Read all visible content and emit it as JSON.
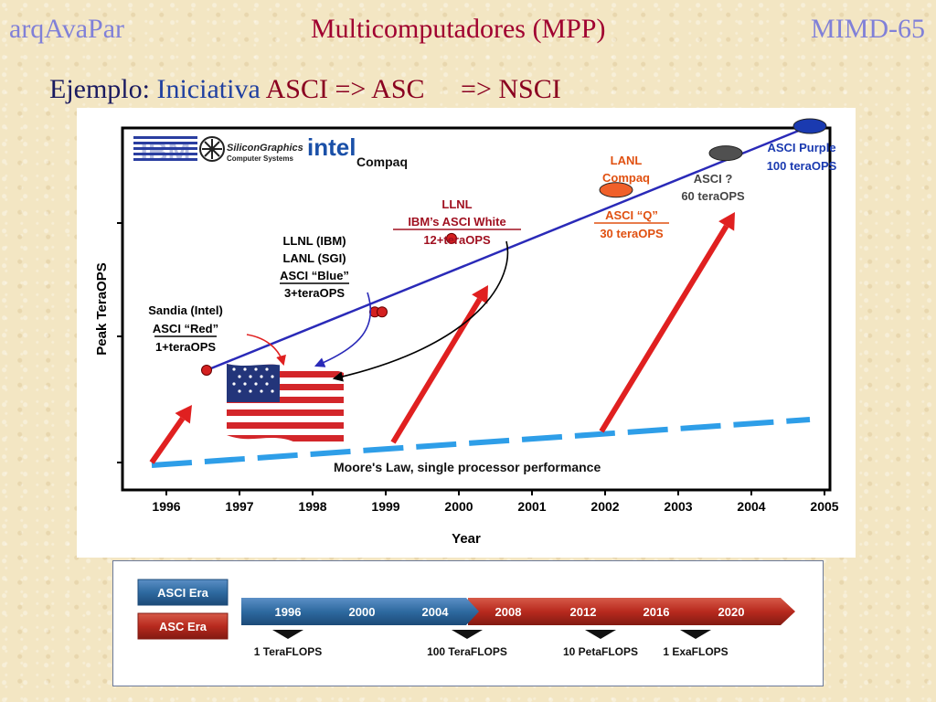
{
  "header": {
    "left": "arqAvaPar",
    "center": "Multicomputadores (MPP)",
    "right": "MIMD-65"
  },
  "subtitle": {
    "label": "Ejemplo:",
    "iniciativa": "Iniciativa",
    "asci": "ASCI =>",
    "asc": "ASC",
    "nsci": "=> NSCI"
  },
  "chart_data": [
    {
      "type": "line",
      "xlabel": "Year",
      "ylabel": "Peak TeraOPS",
      "x_ticks": [
        "1996",
        "1997",
        "1998",
        "1999",
        "2000",
        "2001",
        "2002",
        "2003",
        "2004",
        "2005"
      ],
      "xlim": [
        1995.65,
        2005.0
      ],
      "vendors": [
        "IBM",
        "SiliconGraphics",
        "Computer Systems",
        "intel",
        "Compaq"
      ],
      "series": [
        {
          "name": "",
          "color": "#2a2ab8",
          "points": [
            [
              1996.55,
              1
            ],
            [
              1998.85,
              3
            ],
            [
              1998.95,
              3
            ],
            [
              1999.9,
              12
            ],
            [
              2002.15,
              30
            ],
            [
              2003.65,
              60
            ],
            [
              2004.8,
              100
            ]
          ]
        }
      ],
      "moores_law_label": "Moore's Law, single processor performance",
      "annotations": [
        {
          "lines": [
            "Sandia (Intel)",
            "ASCI “Red”",
            "1+teraOPS"
          ],
          "color": "#000000"
        },
        {
          "lines": [
            "LLNL (IBM)",
            "LANL (SGI)",
            "ASCI “Blue”",
            "3+teraOPS"
          ],
          "color": "#000000"
        },
        {
          "lines": [
            "LLNL",
            "IBM’s ASCI White",
            "12+teraOPS"
          ],
          "color": "#a01020"
        },
        {
          "lines": [
            "LANL",
            "Compaq"
          ],
          "color": "#e05010"
        },
        {
          "lines": [
            "ASCI “Q”",
            "30 teraOPS"
          ],
          "color": "#e05010"
        },
        {
          "lines": [
            "ASCI  ?",
            "60 teraOPS"
          ],
          "color": "#444444"
        },
        {
          "lines": [
            "ASCI  Purple",
            "100 teraOPS"
          ],
          "color": "#1a3ab0"
        }
      ]
    },
    {
      "type": "timeline",
      "eras": [
        "ASCI Era",
        "ASC Era"
      ],
      "years": [
        "1996",
        "2000",
        "2004",
        "2008",
        "2012",
        "2016",
        "2020"
      ],
      "milestones": [
        "1 TeraFLOPS",
        "100 TeraFLOPS",
        "10 PetaFLOPS",
        "1 ExaFLOPS"
      ],
      "colors": {
        "asci": "#2e6aa0",
        "asc": "#b82a1e"
      }
    }
  ]
}
